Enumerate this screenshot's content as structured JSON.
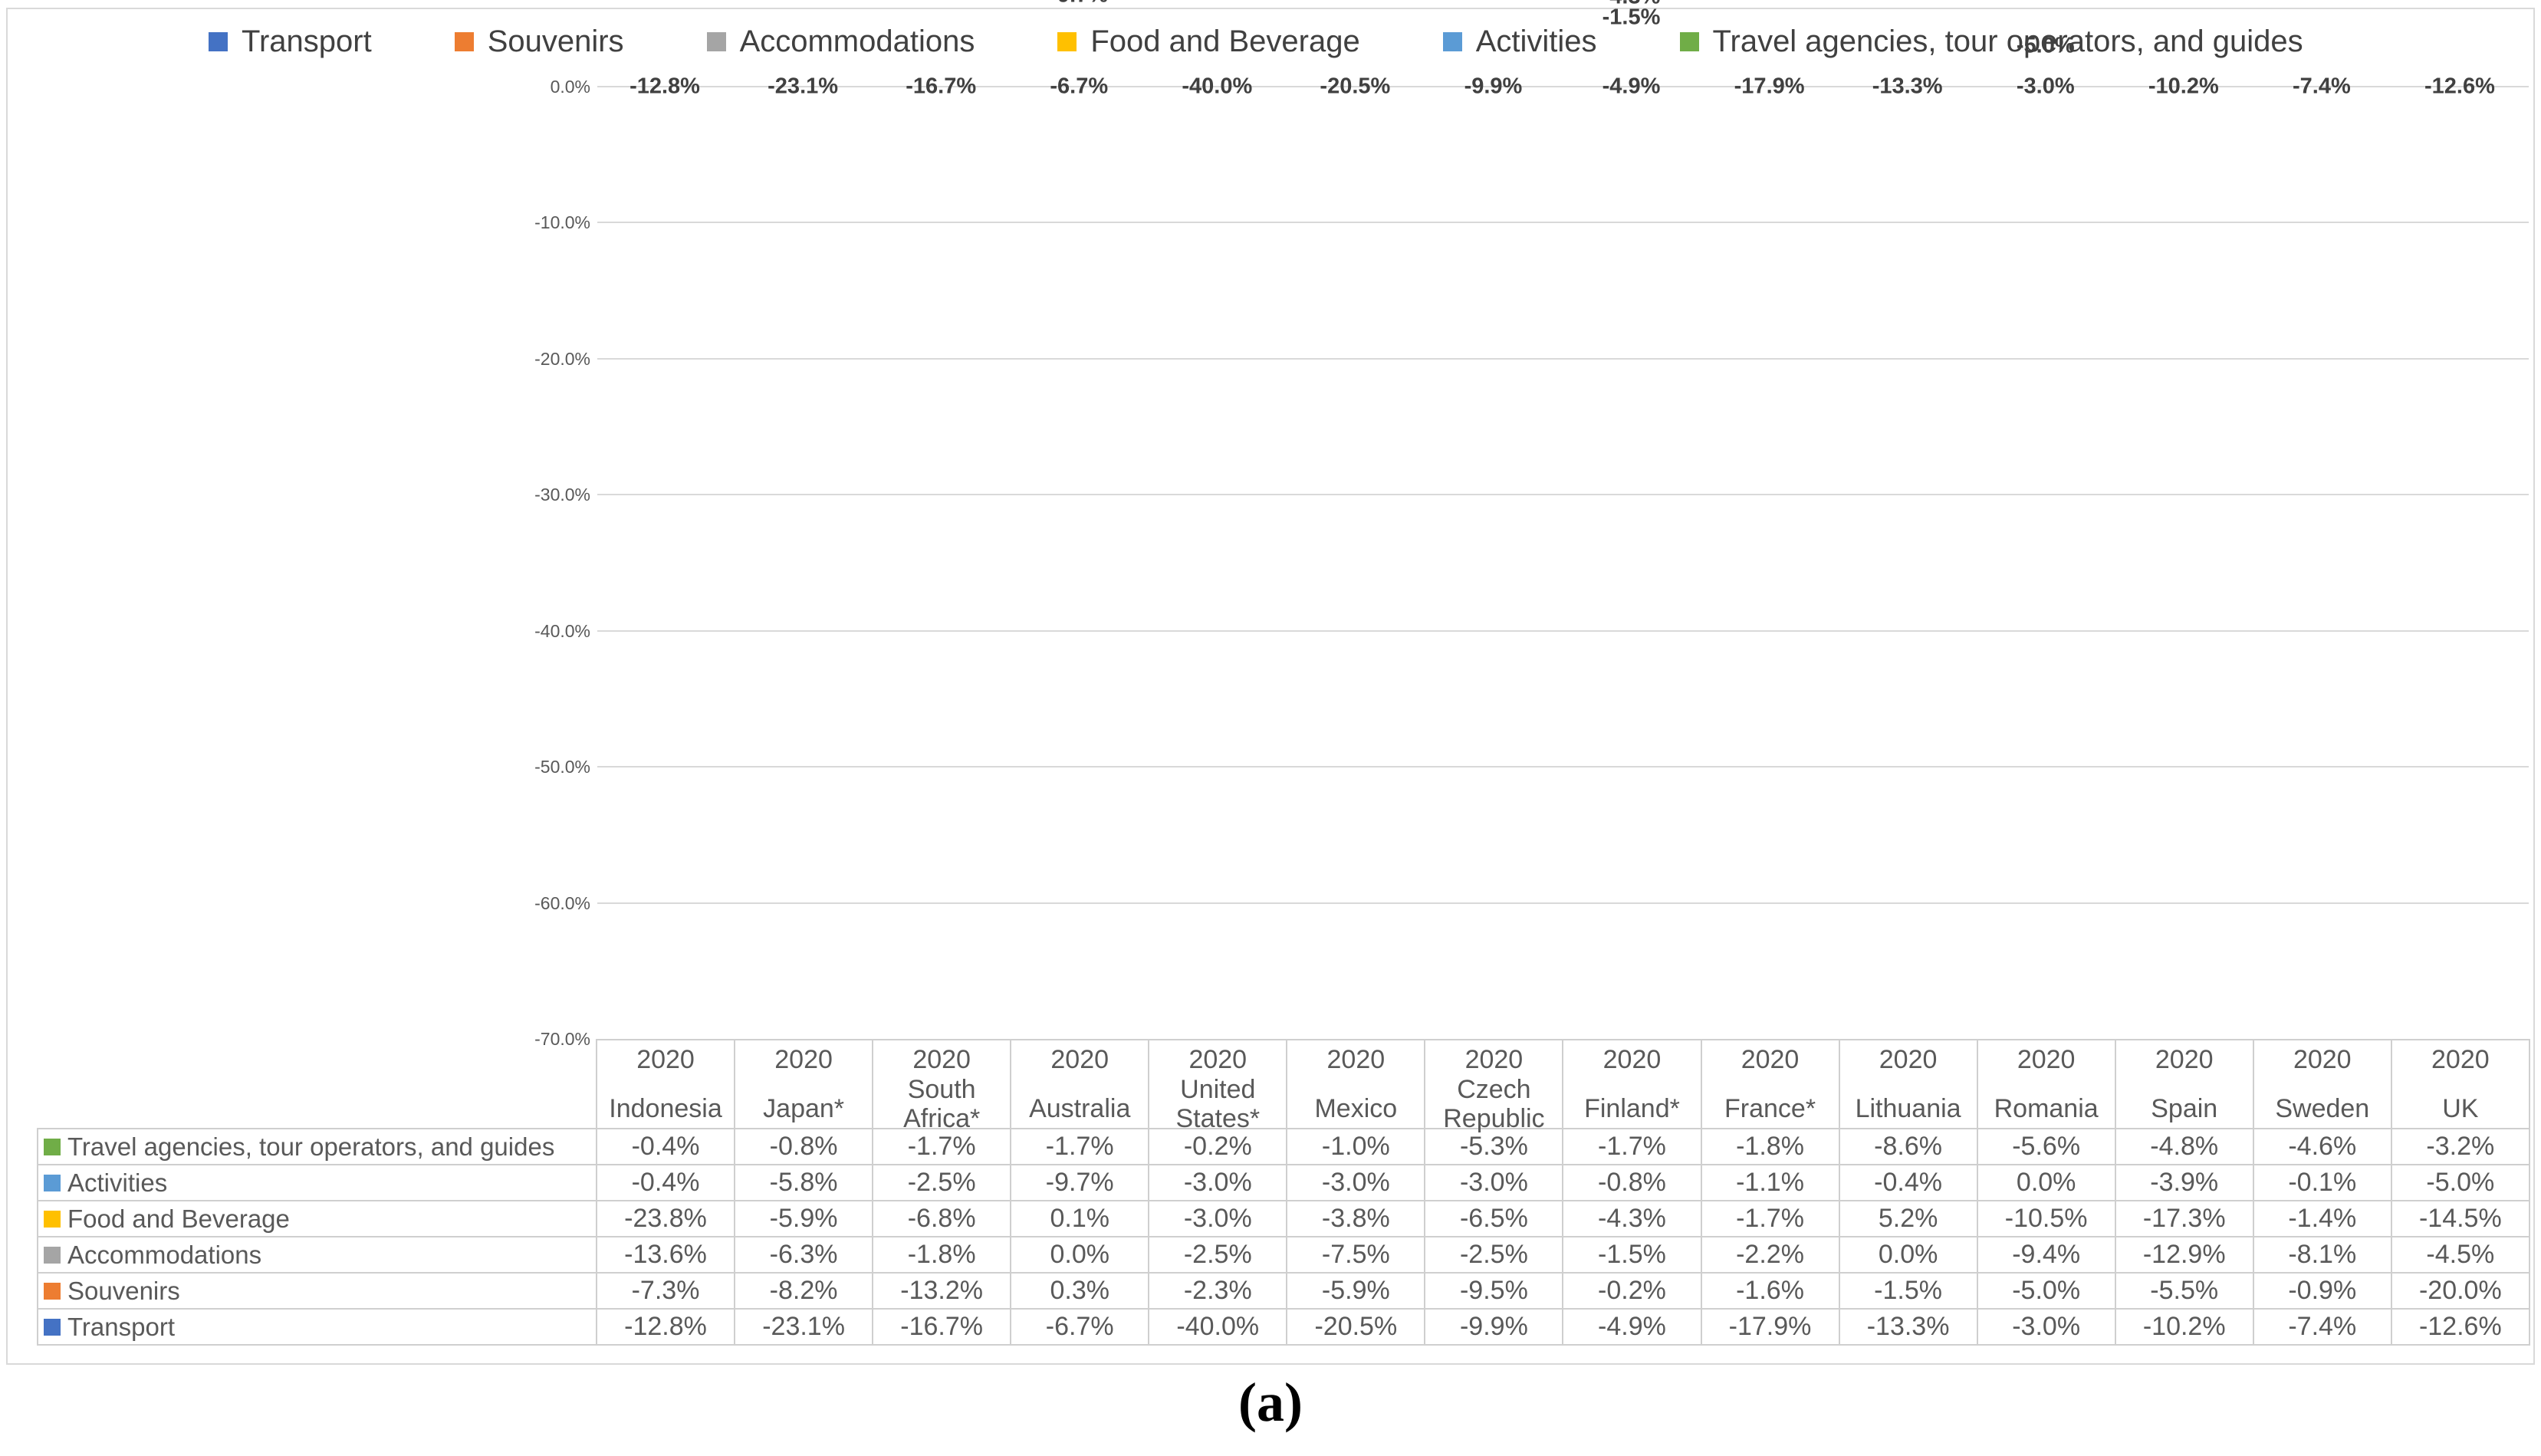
{
  "caption": "(a)",
  "chart_data": {
    "type": "bar",
    "stacked": true,
    "orientation": "vertical",
    "title": "",
    "xlabel": "",
    "ylabel": "",
    "ylim": [
      -70,
      0
    ],
    "ytick_labels": [
      "0.0%",
      "-10.0%",
      "-20.0%",
      "-30.0%",
      "-40.0%",
      "-50.0%",
      "-60.0%",
      "-70.0%"
    ],
    "grid": true,
    "legend_position": "top",
    "value_format": "percent_one_decimal",
    "year_label": "2020",
    "categories": [
      "Indonesia",
      "Japan*",
      "South Africa*",
      "Australia",
      "United States*",
      "Mexico",
      "Czech Republic",
      "Finland*",
      "France*",
      "Lithuania",
      "Romania",
      "Spain",
      "Sweden",
      "UK"
    ],
    "series": [
      {
        "name": "Transport",
        "color": "#4472C4",
        "values": [
          -12.8,
          -23.1,
          -16.7,
          -6.7,
          -40.0,
          -20.5,
          -9.9,
          -4.9,
          -17.9,
          -13.3,
          -3.0,
          -10.2,
          -7.4,
          -12.6
        ],
        "labels_shown": [
          1,
          1,
          1,
          1,
          1,
          1,
          1,
          1,
          1,
          1,
          1,
          1,
          1,
          1
        ]
      },
      {
        "name": "Souvenirs",
        "color": "#ED7D31",
        "values": [
          -7.3,
          -8.2,
          -13.2,
          0.3,
          -2.3,
          -5.9,
          -9.5,
          -0.2,
          -1.6,
          -1.5,
          -5.0,
          -5.5,
          -0.9,
          -20.0
        ],
        "labels_shown": [
          1,
          1,
          1,
          0,
          1,
          1,
          1,
          0,
          1,
          1,
          1,
          1,
          0,
          1
        ]
      },
      {
        "name": "Accommodations",
        "color": "#A5A5A5",
        "values": [
          -13.6,
          -6.3,
          -1.8,
          0.0,
          -2.5,
          -7.5,
          -2.5,
          -1.5,
          -2.2,
          0.0,
          -9.4,
          -12.9,
          -8.1,
          -4.5
        ],
        "labels_shown": [
          1,
          1,
          1,
          0,
          1,
          1,
          1,
          1,
          1,
          0,
          1,
          1,
          1,
          1
        ]
      },
      {
        "name": "Food and Beverage",
        "color": "#FFC000",
        "values": [
          -23.8,
          -5.9,
          -6.8,
          0.1,
          -3.0,
          -3.8,
          -6.5,
          -4.3,
          -1.7,
          5.2,
          -10.5,
          -17.3,
          -1.4,
          -14.5
        ],
        "labels_shown": [
          1,
          1,
          1,
          0,
          1,
          1,
          1,
          1,
          1,
          0,
          1,
          1,
          1,
          1
        ]
      },
      {
        "name": "Activities",
        "color": "#5B9BD5",
        "values": [
          -0.4,
          -5.8,
          -2.5,
          -9.7,
          -3.0,
          -3.0,
          -3.0,
          -0.8,
          -1.1,
          -0.4,
          0.0,
          -3.9,
          -0.1,
          -5.0
        ],
        "labels_shown": [
          0,
          1,
          1,
          1,
          1,
          1,
          1,
          0,
          1,
          0,
          0,
          1,
          0,
          1
        ]
      },
      {
        "name": "Travel agencies, tour operators, and guides",
        "color": "#70AD47",
        "values": [
          -0.4,
          -0.8,
          -1.7,
          -1.7,
          -0.2,
          -1.0,
          -5.3,
          -1.7,
          -1.8,
          -8.6,
          -5.6,
          -4.8,
          -4.6,
          -3.2
        ],
        "labels_shown": [
          0,
          0,
          1,
          0,
          0,
          0,
          1,
          1,
          1,
          1,
          1,
          1,
          1,
          1
        ]
      }
    ]
  }
}
